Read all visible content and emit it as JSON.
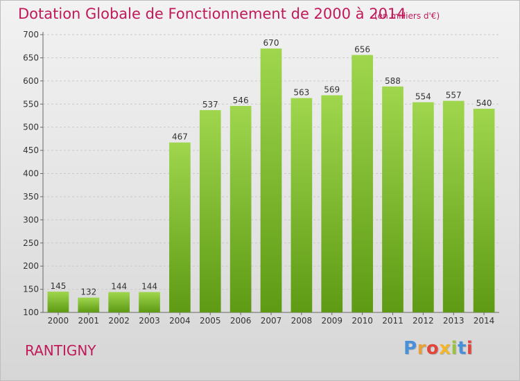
{
  "header": {
    "title": "Dotation Globale de Fonctionnement de 2000 à 2014",
    "subtitle": "(en milliers d'€)"
  },
  "footer": {
    "commune": "RANTIGNY",
    "logo_text": "Proxiti"
  },
  "colors": {
    "accent": "#c0195a",
    "bar_top": "#9fd64e",
    "bar_bottom": "#5e9a14",
    "logo_letters": [
      "#4a90d9",
      "#e8a13a",
      "#e2463a",
      "#f2b52c",
      "#9bc23c",
      "#4a90d9",
      "#e2463a"
    ]
  },
  "chart_data": {
    "type": "bar",
    "title": "Dotation Globale de Fonctionnement de 2000 à 2014",
    "subtitle": "(en milliers d'€)",
    "categories": [
      "2000",
      "2001",
      "2002",
      "2003",
      "2004",
      "2005",
      "2006",
      "2007",
      "2008",
      "2009",
      "2010",
      "2011",
      "2012",
      "2013",
      "2014"
    ],
    "values": [
      145,
      132,
      144,
      144,
      467,
      537,
      546,
      670,
      563,
      569,
      656,
      588,
      554,
      557,
      540
    ],
    "ylim": [
      100,
      700
    ],
    "yticks": [
      100,
      150,
      200,
      250,
      300,
      350,
      400,
      450,
      500,
      550,
      600,
      650,
      700
    ],
    "grid": true,
    "data_labels": true
  }
}
